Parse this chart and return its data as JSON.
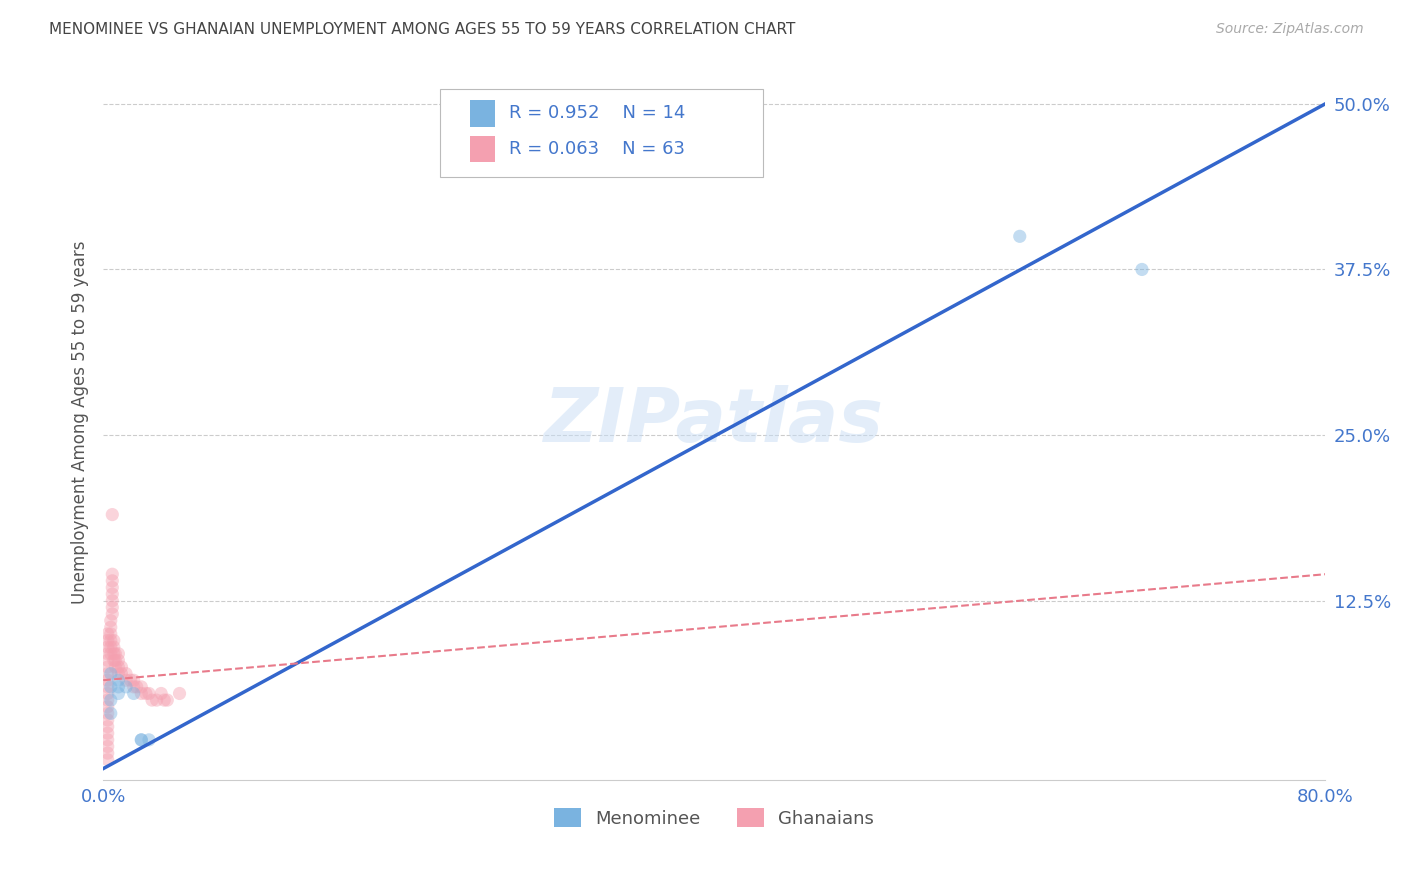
{
  "title": "MENOMINEE VS GHANAIAN UNEMPLOYMENT AMONG AGES 55 TO 59 YEARS CORRELATION CHART",
  "source": "Source: ZipAtlas.com",
  "ylabel": "Unemployment Among Ages 55 to 59 years",
  "xlim": [
    0.0,
    0.8
  ],
  "ylim": [
    -0.01,
    0.53
  ],
  "xticks": [
    0.0,
    0.2,
    0.4,
    0.6,
    0.8
  ],
  "xticklabels": [
    "0.0%",
    "",
    "",
    "",
    "80.0%"
  ],
  "yticks": [
    0.0,
    0.125,
    0.25,
    0.375,
    0.5
  ],
  "yticklabels": [
    "",
    "12.5%",
    "25.0%",
    "37.5%",
    "50.0%"
  ],
  "watermark": "ZIPatlas",
  "legend_r1": "R = 0.952",
  "legend_n1": "N = 14",
  "legend_r2": "R = 0.063",
  "legend_n2": "N = 63",
  "menominee_color": "#7ab3e0",
  "ghanaian_color": "#f4a0b0",
  "menominee_line_color": "#3366cc",
  "ghanaian_line_color": "#e87a8a",
  "grid_color": "#cccccc",
  "title_color": "#444444",
  "axis_label_color": "#555555",
  "tick_color": "#4477cc",
  "menominee_scatter_x": [
    0.005,
    0.005,
    0.005,
    0.01,
    0.01,
    0.01,
    0.015,
    0.02,
    0.025,
    0.025,
    0.03,
    0.6,
    0.68,
    0.005
  ],
  "menominee_scatter_y": [
    0.04,
    0.05,
    0.06,
    0.055,
    0.06,
    0.065,
    0.06,
    0.055,
    0.02,
    0.02,
    0.02,
    0.4,
    0.375,
    0.07
  ],
  "ghanaian_scatter_x": [
    0.003,
    0.003,
    0.003,
    0.003,
    0.003,
    0.003,
    0.003,
    0.003,
    0.003,
    0.003,
    0.003,
    0.003,
    0.003,
    0.003,
    0.003,
    0.003,
    0.003,
    0.003,
    0.003,
    0.003,
    0.005,
    0.005,
    0.005,
    0.005,
    0.005,
    0.005,
    0.007,
    0.007,
    0.007,
    0.007,
    0.008,
    0.008,
    0.008,
    0.01,
    0.01,
    0.01,
    0.01,
    0.012,
    0.012,
    0.015,
    0.015,
    0.018,
    0.02,
    0.02,
    0.022,
    0.025,
    0.025,
    0.028,
    0.03,
    0.032,
    0.035,
    0.038,
    0.04,
    0.042,
    0.05,
    0.006,
    0.006,
    0.006,
    0.006,
    0.006,
    0.006,
    0.006,
    0.006
  ],
  "ghanaian_scatter_y": [
    0.045,
    0.05,
    0.055,
    0.06,
    0.065,
    0.07,
    0.075,
    0.08,
    0.085,
    0.04,
    0.035,
    0.03,
    0.025,
    0.02,
    0.015,
    0.01,
    0.005,
    0.09,
    0.095,
    0.1,
    0.085,
    0.09,
    0.095,
    0.1,
    0.105,
    0.11,
    0.08,
    0.085,
    0.09,
    0.095,
    0.075,
    0.08,
    0.085,
    0.07,
    0.075,
    0.08,
    0.085,
    0.07,
    0.075,
    0.065,
    0.07,
    0.065,
    0.06,
    0.065,
    0.06,
    0.055,
    0.06,
    0.055,
    0.055,
    0.05,
    0.05,
    0.055,
    0.05,
    0.05,
    0.055,
    0.115,
    0.12,
    0.125,
    0.13,
    0.135,
    0.14,
    0.145,
    0.19
  ],
  "menominee_trend_x": [
    -0.01,
    0.8
  ],
  "menominee_trend_y": [
    -0.008,
    0.5
  ],
  "ghanaian_trend_x": [
    0.0,
    0.8
  ],
  "ghanaian_trend_y": [
    0.065,
    0.145
  ],
  "marker_size": 90,
  "marker_alpha": 0.45,
  "background_color": "#ffffff"
}
